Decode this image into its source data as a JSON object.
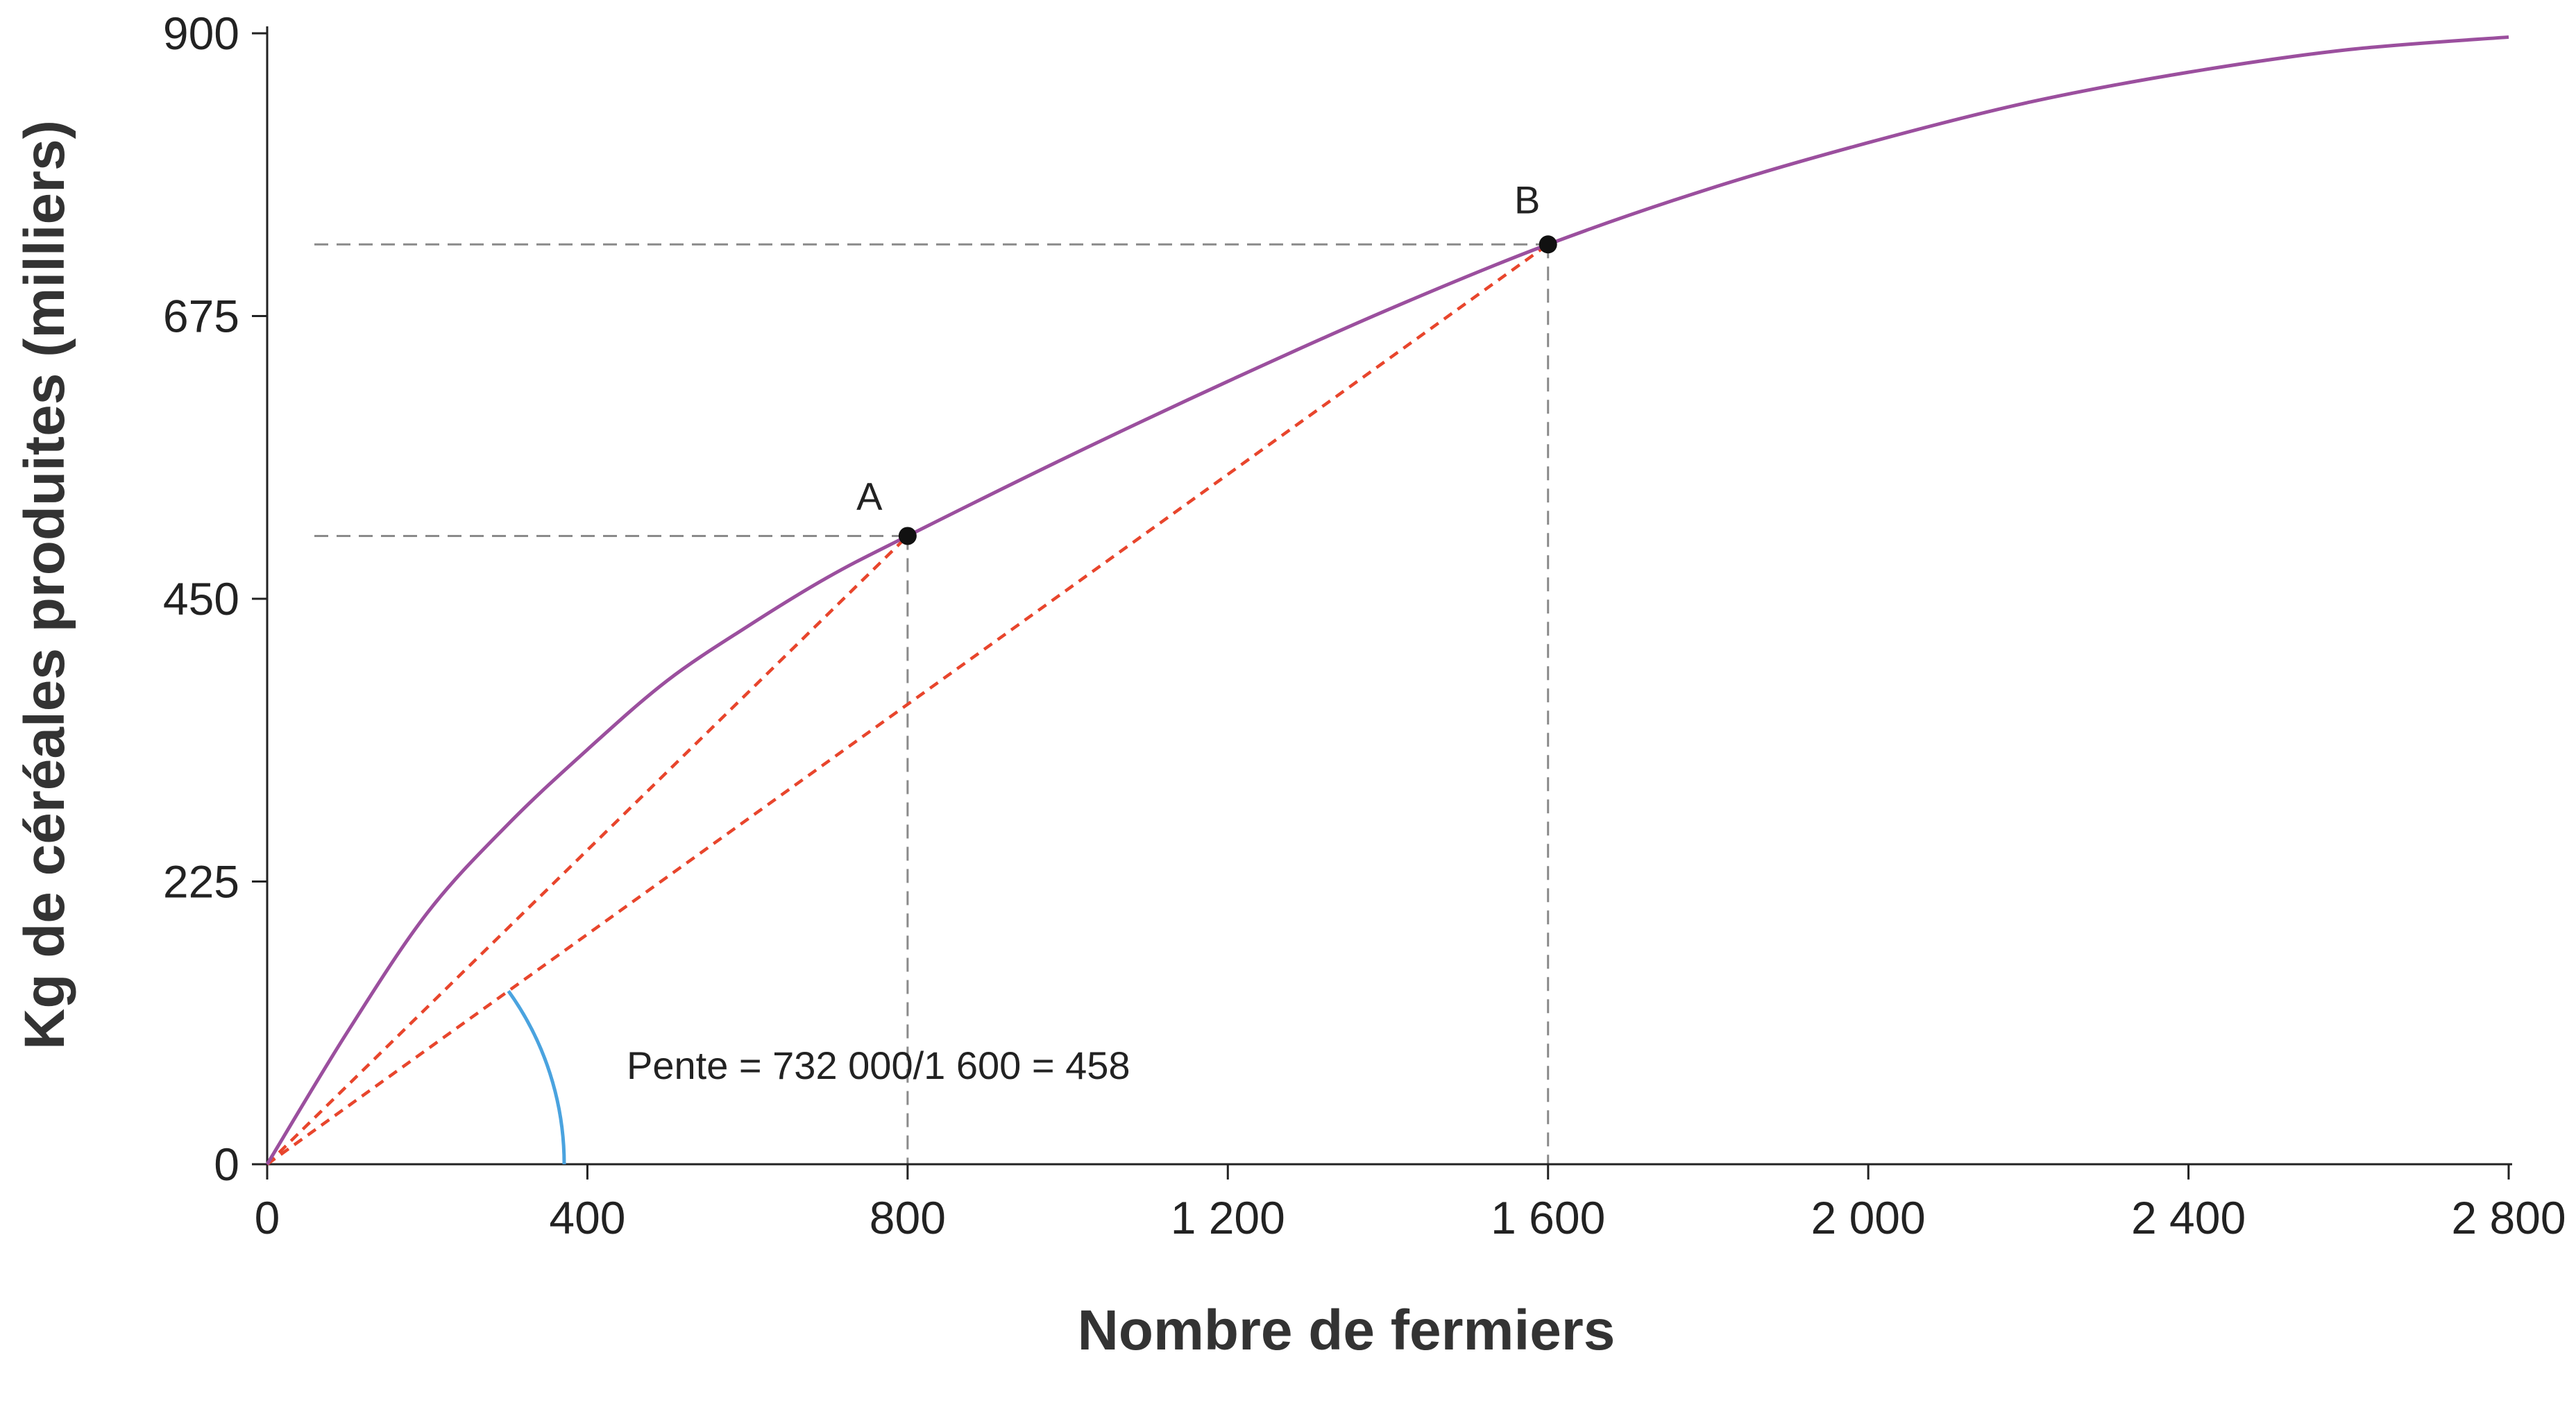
{
  "chart_data": {
    "type": "line",
    "title": "",
    "xlabel": "Nombre de fermiers",
    "ylabel": "Kg de céréales produites (milliers)",
    "xlim": [
      0,
      2800
    ],
    "ylim": [
      0,
      900
    ],
    "x_ticks": [
      0,
      400,
      800,
      1200,
      1600,
      2000,
      2400,
      2800
    ],
    "x_tick_labels": [
      "0",
      "400",
      "800",
      "1 200",
      "1 600",
      "2 000",
      "2 400",
      "2 800"
    ],
    "y_ticks": [
      0,
      225,
      450,
      675,
      900
    ],
    "y_tick_labels": [
      "0",
      "225",
      "450",
      "675",
      "900"
    ],
    "grid": false,
    "series": [
      {
        "color": "#9b4f9e",
        "x": [
          0,
          100,
          200,
          300,
          400,
          500,
          600,
          700,
          800,
          1000,
          1200,
          1400,
          1600,
          1800,
          2000,
          2200,
          2400,
          2600,
          2800
        ],
        "y": [
          0,
          105,
          200,
          270,
          330,
          385,
          428,
          467,
          500,
          563,
          623,
          680,
          732,
          776,
          813,
          845,
          869,
          887,
          897
        ]
      }
    ],
    "points": [
      {
        "label": "A",
        "x": 800,
        "y": 500
      },
      {
        "label": "B",
        "x": 1600,
        "y": 732
      }
    ],
    "secant_color": "#e8452c",
    "guide_color": "#8a8a8a",
    "angle_color": "#4aa3df",
    "annotations": [
      {
        "text": "Pente = 732 000/1 600 = 458"
      }
    ]
  }
}
